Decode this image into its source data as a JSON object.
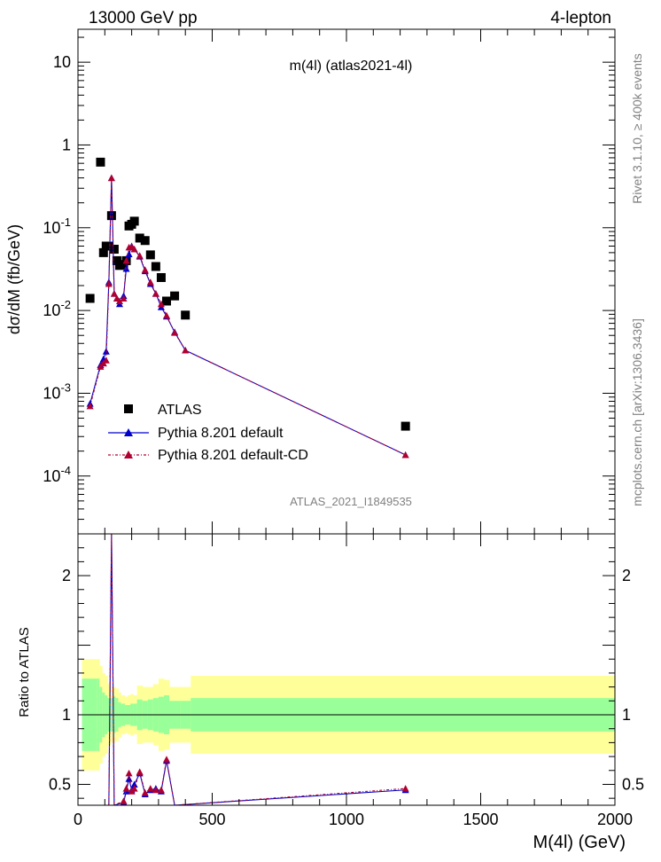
{
  "header": {
    "left": "13000 GeV pp",
    "right": "4-lepton",
    "plot_title": "m(4l) (atlas2021-4l)",
    "analysis_tag": "ATLAS_2021_I1849535",
    "side_rivet": "Rivet 3.1.10, ≥ 400k events",
    "side_mcplots": "mcplots.cern.ch [arXiv:1306.3436]"
  },
  "colors": {
    "data": "#000000",
    "pythia_default": "#0000cc",
    "pythia_cd": "#b00030",
    "band_inner": "#99ff99",
    "band_outer": "#ffff99"
  },
  "chart_data": [
    {
      "type": "scatter",
      "panel": "main",
      "ylabel": "dσ/dM (fb/GeV)",
      "yscale": "log",
      "ylim": [
        2e-05,
        25
      ],
      "xlim": [
        0,
        2000
      ],
      "y_ticks": [
        {
          "v": 10,
          "label": "10"
        },
        {
          "v": 1,
          "label": "1"
        },
        {
          "v": 0.1,
          "label": "10^-1"
        },
        {
          "v": 0.01,
          "label": "10^-2"
        },
        {
          "v": 0.001,
          "label": "10^-3"
        },
        {
          "v": 0.0001,
          "label": "10^-4"
        }
      ],
      "legend_position": "bottom-left",
      "series": [
        {
          "name": "ATLAS",
          "marker": "square",
          "x": [
            45,
            84,
            95,
            105,
            115,
            125,
            135,
            145,
            155,
            170,
            180,
            190,
            200,
            210,
            230,
            250,
            270,
            290,
            310,
            330,
            360,
            400,
            1220
          ],
          "y": [
            0.014,
            0.62,
            0.05,
            0.06,
            0.06,
            0.14,
            0.055,
            0.04,
            0.035,
            0.036,
            0.04,
            0.105,
            0.11,
            0.12,
            0.075,
            0.07,
            0.047,
            0.034,
            0.025,
            0.013,
            0.015,
            0.0088,
            0.0004
          ]
        },
        {
          "name": "Pythia 8.201 default",
          "marker": "triangle",
          "x": [
            45,
            84,
            95,
            105,
            115,
            125,
            135,
            145,
            155,
            170,
            180,
            190,
            200,
            210,
            230,
            250,
            270,
            290,
            310,
            330,
            360,
            400,
            1220
          ],
          "y": [
            0.00075,
            0.0022,
            0.0026,
            0.0032,
            0.022,
            0.4,
            0.016,
            0.014,
            0.012,
            0.015,
            0.032,
            0.048,
            0.06,
            0.055,
            0.045,
            0.03,
            0.021,
            0.016,
            0.011,
            0.0085,
            0.0055,
            0.0033,
            0.00018
          ]
        },
        {
          "name": "Pythia 8.201 default-CD",
          "marker": "triangle",
          "x": [
            45,
            84,
            95,
            105,
            115,
            125,
            135,
            145,
            155,
            170,
            180,
            190,
            200,
            210,
            230,
            250,
            270,
            290,
            310,
            330,
            360,
            400,
            1220
          ],
          "y": [
            0.0007,
            0.0021,
            0.0023,
            0.0025,
            0.021,
            0.4,
            0.016,
            0.014,
            0.013,
            0.014,
            0.04,
            0.058,
            0.059,
            0.055,
            0.046,
            0.031,
            0.022,
            0.016,
            0.012,
            0.0087,
            0.0054,
            0.0033,
            0.00018
          ]
        }
      ]
    },
    {
      "type": "line",
      "panel": "ratio",
      "ylabel": "Ratio to ATLAS",
      "xlabel": "M(4l) (GeV)",
      "ylim": [
        0.35,
        2.3
      ],
      "xlim": [
        0,
        2000
      ],
      "x_ticks": [
        0,
        500,
        1000,
        1500,
        2000
      ],
      "y_ticks": [
        0.5,
        1,
        2
      ],
      "bands": {
        "edges": [
          15,
          70,
          80,
          90,
          100,
          110,
          120,
          130,
          140,
          150,
          160,
          175,
          185,
          195,
          205,
          220,
          240,
          260,
          280,
          300,
          320,
          340,
          380,
          420,
          2000
        ],
        "inner_half_width": [
          0.26,
          0.26,
          0.2,
          0.16,
          0.14,
          0.12,
          0.12,
          0.13,
          0.12,
          0.09,
          0.08,
          0.07,
          0.07,
          0.08,
          0.08,
          0.11,
          0.1,
          0.11,
          0.12,
          0.13,
          0.14,
          0.1,
          0.1,
          0.12
        ],
        "outer_half_width": [
          0.4,
          0.4,
          0.35,
          0.3,
          0.28,
          0.22,
          0.2,
          0.2,
          0.19,
          0.16,
          0.14,
          0.13,
          0.14,
          0.15,
          0.14,
          0.21,
          0.2,
          0.2,
          0.22,
          0.26,
          0.25,
          0.2,
          0.2,
          0.28
        ]
      },
      "series": [
        {
          "name": "Pythia 8.201 default",
          "x": [
            115,
            125,
            135,
            170,
            180,
            190,
            200,
            210,
            230,
            250,
            270,
            290,
            310,
            330,
            360,
            1220
          ],
          "y": [
            0.35,
            2.3,
            0.35,
            0.37,
            0.45,
            0.54,
            0.46,
            0.5,
            0.58,
            0.43,
            0.46,
            0.47,
            0.45,
            0.67,
            0.35,
            0.46
          ]
        },
        {
          "name": "Pythia 8.201 default-CD",
          "x": [
            115,
            125,
            135,
            170,
            180,
            190,
            200,
            210,
            230,
            250,
            270,
            290,
            310,
            330,
            360,
            1220
          ],
          "y": [
            0.35,
            2.3,
            0.35,
            0.38,
            0.47,
            0.58,
            0.45,
            0.47,
            0.59,
            0.44,
            0.47,
            0.46,
            0.46,
            0.68,
            0.35,
            0.47
          ]
        }
      ]
    }
  ]
}
